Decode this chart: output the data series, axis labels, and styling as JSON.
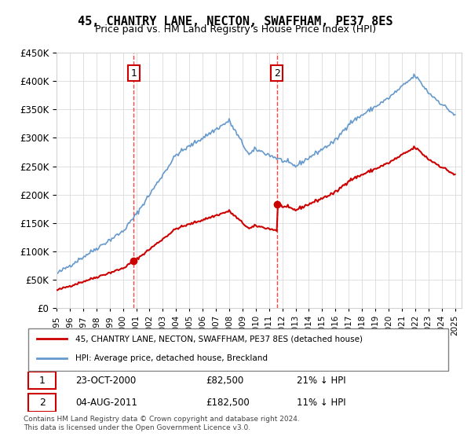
{
  "title": "45, CHANTRY LANE, NECTON, SWAFFHAM, PE37 8ES",
  "subtitle": "Price paid vs. HM Land Registry's House Price Index (HPI)",
  "legend_line1": "45, CHANTRY LANE, NECTON, SWAFFHAM, PE37 8ES (detached house)",
  "legend_line2": "HPI: Average price, detached house, Breckland",
  "annotation1_label": "1",
  "annotation1_date": "23-OCT-2000",
  "annotation1_price": "£82,500",
  "annotation1_hpi": "21% ↓ HPI",
  "annotation2_label": "2",
  "annotation2_date": "04-AUG-2011",
  "annotation2_price": "£182,500",
  "annotation2_hpi": "11% ↓ HPI",
  "footnote": "Contains HM Land Registry data © Crown copyright and database right 2024.\nThis data is licensed under the Open Government Licence v3.0.",
  "sale1_year": 2000.81,
  "sale1_value": 82500,
  "sale2_year": 2011.59,
  "sale2_value": 182500,
  "hpi_color": "#6699cc",
  "sale_color": "#cc0000",
  "vline_color": "#ff4444",
  "ylim_min": 0,
  "ylim_max": 450000,
  "xlim_min": 1995,
  "xlim_max": 2025.5
}
